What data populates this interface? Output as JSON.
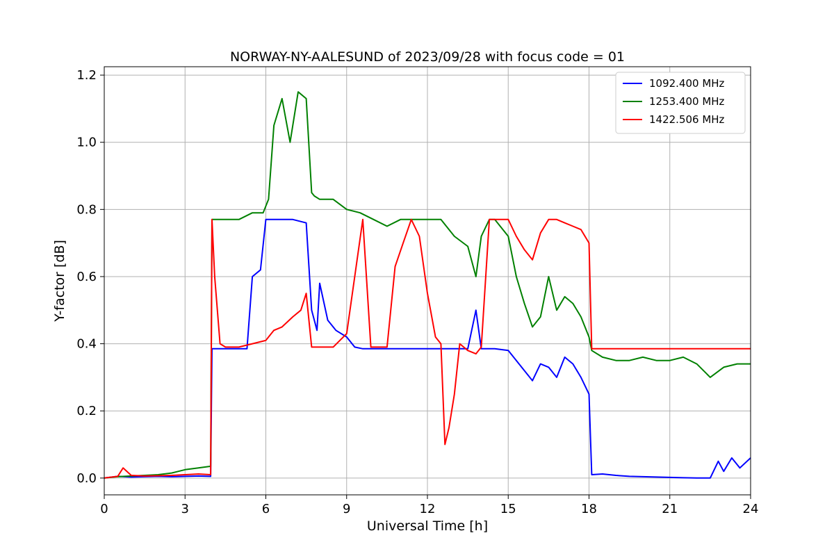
{
  "chart_data": {
    "type": "line",
    "title": "NORWAY-NY-AALESUND of 2023/09/28 with focus code = 01",
    "xlabel": "Universal Time [h]",
    "ylabel": "Y-factor [dB]",
    "xlim": [
      0,
      24
    ],
    "ylim": [
      -0.05,
      1.225
    ],
    "xticks": [
      0,
      3,
      6,
      9,
      12,
      15,
      18,
      21,
      24
    ],
    "yticks": [
      0.0,
      0.2,
      0.4,
      0.6,
      0.8,
      1.0,
      1.2
    ],
    "grid": true,
    "legend_position": "top-right",
    "series": [
      {
        "name": "1092.400 MHz",
        "color": "#0000ff",
        "x": [
          0,
          0.5,
          1,
          1.5,
          2,
          2.5,
          3,
          3.5,
          3.95,
          4.0,
          4.5,
          5,
          5.3,
          5.5,
          5.8,
          6.0,
          6.5,
          7,
          7.5,
          7.7,
          7.9,
          8.0,
          8.3,
          8.6,
          9.0,
          9.3,
          9.6,
          10,
          10.5,
          11,
          11.5,
          12,
          12.5,
          13,
          13.5,
          13.8,
          14.0,
          14.5,
          15,
          15.3,
          15.6,
          15.9,
          16.2,
          16.5,
          16.8,
          17.1,
          17.4,
          17.7,
          18.0,
          18.1,
          18.5,
          19,
          19.5,
          20,
          20.5,
          21,
          21.5,
          22,
          22.5,
          22.8,
          23,
          23.3,
          23.6,
          24
        ],
        "y": [
          0,
          0.005,
          0.003,
          0.004,
          0.005,
          0.004,
          0.005,
          0.006,
          0.005,
          0.385,
          0.385,
          0.385,
          0.385,
          0.6,
          0.62,
          0.77,
          0.77,
          0.77,
          0.76,
          0.5,
          0.44,
          0.58,
          0.47,
          0.44,
          0.42,
          0.39,
          0.385,
          0.385,
          0.385,
          0.385,
          0.385,
          0.385,
          0.385,
          0.385,
          0.385,
          0.5,
          0.385,
          0.385,
          0.38,
          0.35,
          0.32,
          0.29,
          0.34,
          0.33,
          0.3,
          0.36,
          0.34,
          0.3,
          0.25,
          0.01,
          0.012,
          0.008,
          0.005,
          0.004,
          0.003,
          0.002,
          0.001,
          0,
          0,
          0.05,
          0.02,
          0.06,
          0.03,
          0.06
        ]
      },
      {
        "name": "1253.400 MHz",
        "color": "#008000",
        "x": [
          0,
          0.5,
          1,
          1.5,
          2,
          2.5,
          3,
          3.5,
          3.95,
          4.0,
          4.5,
          5,
          5.5,
          5.9,
          6.1,
          6.3,
          6.6,
          6.9,
          7.2,
          7.5,
          7.7,
          7.8,
          8.0,
          8.5,
          9.0,
          9.5,
          10,
          10.5,
          11,
          11.5,
          12,
          12.5,
          13,
          13.5,
          13.8,
          14.0,
          14.3,
          14.5,
          15,
          15.3,
          15.6,
          15.9,
          16.2,
          16.5,
          16.8,
          17.1,
          17.4,
          17.7,
          18.0,
          18.1,
          18.5,
          19,
          19.5,
          20,
          20.5,
          21,
          21.5,
          22,
          22.5,
          23,
          23.5,
          24
        ],
        "y": [
          0,
          0.004,
          0.006,
          0.008,
          0.01,
          0.015,
          0.025,
          0.03,
          0.035,
          0.77,
          0.77,
          0.77,
          0.79,
          0.79,
          0.83,
          1.05,
          1.13,
          1.0,
          1.15,
          1.13,
          0.85,
          0.84,
          0.83,
          0.83,
          0.8,
          0.79,
          0.77,
          0.75,
          0.77,
          0.77,
          0.77,
          0.77,
          0.72,
          0.69,
          0.6,
          0.72,
          0.77,
          0.77,
          0.72,
          0.6,
          0.52,
          0.45,
          0.48,
          0.6,
          0.5,
          0.54,
          0.52,
          0.48,
          0.42,
          0.38,
          0.36,
          0.35,
          0.35,
          0.36,
          0.35,
          0.35,
          0.36,
          0.34,
          0.3,
          0.33,
          0.34,
          0.34
        ]
      },
      {
        "name": "1422.506 MHz",
        "color": "#ff0000",
        "x": [
          0,
          0.5,
          0.7,
          1,
          1.5,
          2,
          2.5,
          3,
          3.5,
          3.95,
          4.0,
          4.1,
          4.3,
          4.5,
          5,
          5.5,
          6,
          6.3,
          6.6,
          7,
          7.3,
          7.5,
          7.7,
          8.0,
          8.5,
          9.0,
          9.3,
          9.6,
          9.9,
          10.2,
          10.5,
          10.8,
          11.1,
          11.4,
          11.7,
          12.0,
          12.3,
          12.5,
          12.65,
          12.8,
          13.0,
          13.2,
          13.5,
          13.8,
          14.0,
          14.3,
          14.6,
          15,
          15.3,
          15.6,
          15.9,
          16.2,
          16.5,
          16.8,
          17.1,
          17.4,
          17.7,
          18.0,
          18.1,
          18.5,
          19,
          19.5,
          20,
          20.5,
          21,
          21.5,
          22,
          22.5,
          23,
          23.5,
          24
        ],
        "y": [
          0,
          0.005,
          0.03,
          0.008,
          0.006,
          0.007,
          0.008,
          0.01,
          0.012,
          0.01,
          0.77,
          0.6,
          0.4,
          0.39,
          0.39,
          0.4,
          0.41,
          0.44,
          0.45,
          0.48,
          0.5,
          0.55,
          0.39,
          0.39,
          0.39,
          0.43,
          0.6,
          0.77,
          0.39,
          0.39,
          0.39,
          0.63,
          0.7,
          0.77,
          0.72,
          0.55,
          0.42,
          0.4,
          0.1,
          0.15,
          0.25,
          0.4,
          0.38,
          0.37,
          0.39,
          0.77,
          0.77,
          0.77,
          0.72,
          0.68,
          0.65,
          0.73,
          0.77,
          0.77,
          0.76,
          0.75,
          0.74,
          0.7,
          0.385,
          0.385,
          0.385,
          0.385,
          0.385,
          0.385,
          0.385,
          0.385,
          0.385,
          0.385,
          0.385,
          0.385,
          0.385
        ]
      }
    ]
  }
}
